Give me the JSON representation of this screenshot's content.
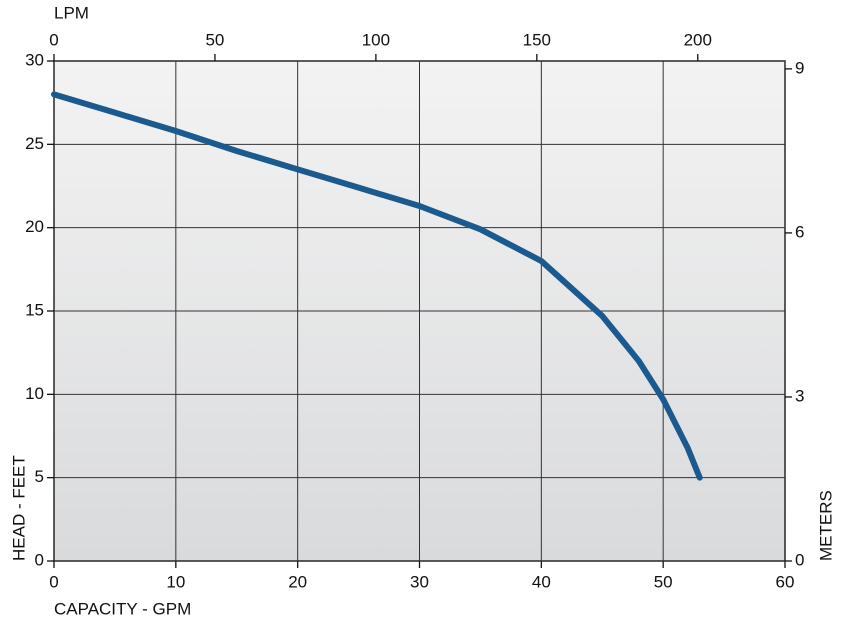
{
  "chart_data": {
    "type": "line",
    "x_label": "CAPACITY - GPM",
    "y_label": "HEAD - FEET",
    "x2_label": "LPM",
    "y2_label": "METERS",
    "x": [
      0,
      5,
      10,
      15,
      20,
      25,
      30,
      35,
      40,
      45,
      48,
      50,
      52,
      53
    ],
    "series": [
      {
        "color": "#1b5a8e",
        "values": [
          28,
          26.9,
          25.8,
          24.6,
          23.5,
          22.4,
          21.3,
          19.9,
          18,
          14.7,
          12,
          9.7,
          6.8,
          5
        ]
      }
    ],
    "xlim": [
      0,
      60
    ],
    "xticks": [
      0,
      10,
      20,
      30,
      40,
      50,
      60
    ],
    "ylim": [
      0,
      30
    ],
    "yticks": [
      0,
      5,
      10,
      15,
      20,
      25,
      30
    ],
    "x2lim": [
      0,
      227.1
    ],
    "x2ticks": [
      0,
      50,
      100,
      150,
      200
    ],
    "y2lim": [
      0,
      9.144
    ],
    "y2ticks": [
      0,
      3,
      6,
      9
    ],
    "grid": true
  }
}
